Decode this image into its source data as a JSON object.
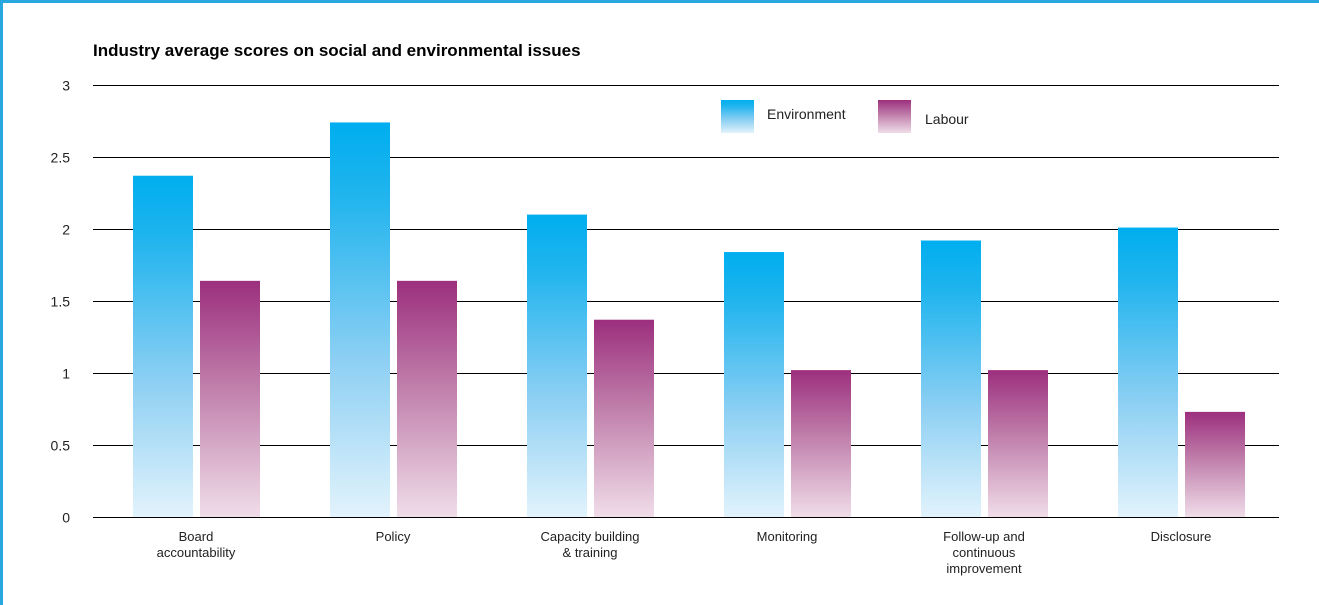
{
  "chart_data": {
    "type": "bar",
    "title": "Industry average scores on social and environmental issues",
    "xlabel": "",
    "ylabel": "",
    "ylim": [
      0,
      3
    ],
    "yticks": [
      "0",
      "0.5",
      "1",
      "1.5",
      "2",
      "2.5",
      "3"
    ],
    "grid": true,
    "legend_position": "top-right",
    "categories": [
      [
        "Board",
        "accountability"
      ],
      [
        "Policy"
      ],
      [
        "Capacity building",
        "& training"
      ],
      [
        "Monitoring"
      ],
      [
        "Follow-up and",
        "continuous",
        "improvement"
      ],
      [
        "Disclosure"
      ]
    ],
    "series": [
      {
        "name": "Environment",
        "color": "#00aeef",
        "values": [
          2.37,
          2.74,
          2.1,
          1.84,
          1.92,
          2.01
        ]
      },
      {
        "name": "Labour",
        "color": "#a0337f",
        "values": [
          1.64,
          1.64,
          1.37,
          1.02,
          1.02,
          0.73
        ]
      }
    ]
  }
}
